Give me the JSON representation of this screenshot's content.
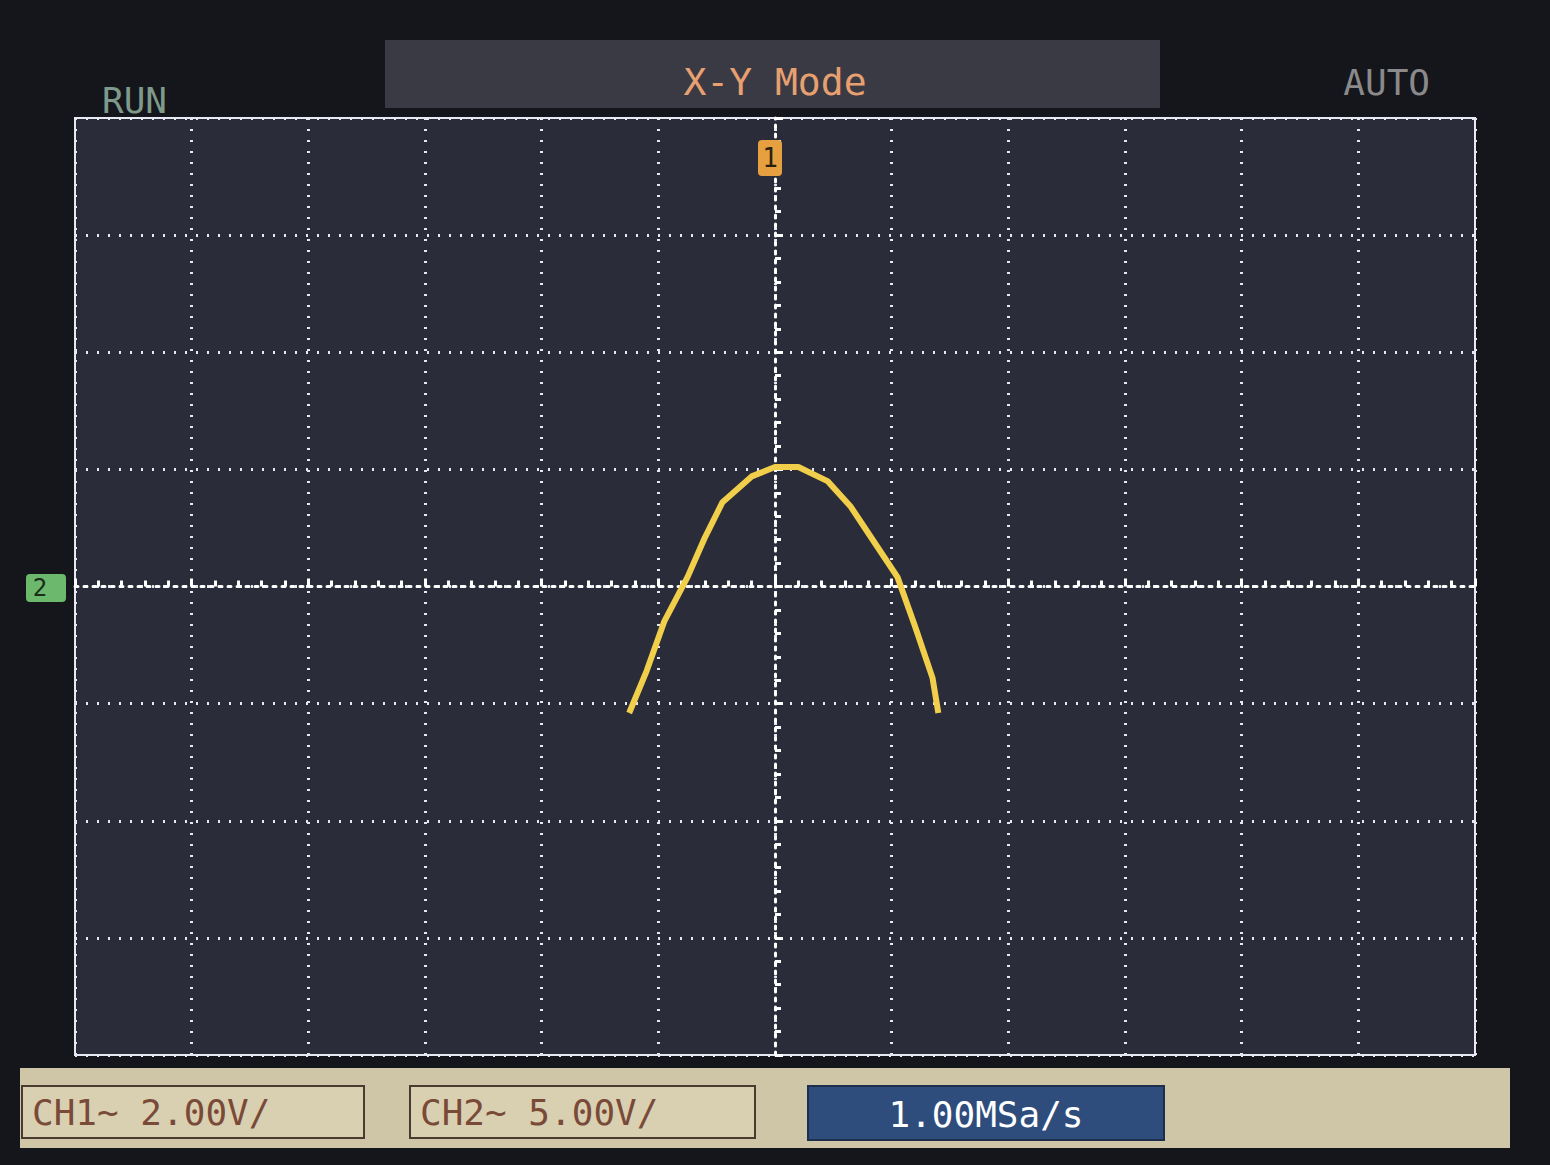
{
  "chart_data": {
    "type": "line",
    "title": "X-Y Mode",
    "x": [
      -2.5,
      -2.2,
      -1.9,
      -1.5,
      -1.2,
      -0.9,
      -0.4,
      0,
      0.4,
      0.9,
      1.3,
      1.7,
      2.1,
      2.4,
      2.7,
      2.8
    ],
    "values": [
      -5.4,
      -3.6,
      -1.5,
      0.4,
      2.1,
      3.6,
      4.7,
      5.1,
      5.1,
      4.5,
      3.4,
      1.9,
      0.4,
      -1.7,
      -3.9,
      -5.4
    ],
    "color": "#f2cf4a",
    "xlim": [
      -12,
      12
    ],
    "xticks": [
      -12,
      -10,
      -8,
      -6,
      -4,
      -2,
      0,
      2,
      4,
      6,
      8,
      10,
      12
    ],
    "ylim": [
      -20,
      20
    ],
    "yticks": [
      -20,
      -15,
      -10,
      -5,
      0,
      5,
      10,
      15,
      20
    ],
    "grid": true,
    "tick_labels": false,
    "annotations": [
      "RUN",
      "AUTO",
      "CH1~ 2.00V/",
      "CH2~ 5.00V/",
      "1.00MSa/s",
      "1",
      "2"
    ]
  }
}
